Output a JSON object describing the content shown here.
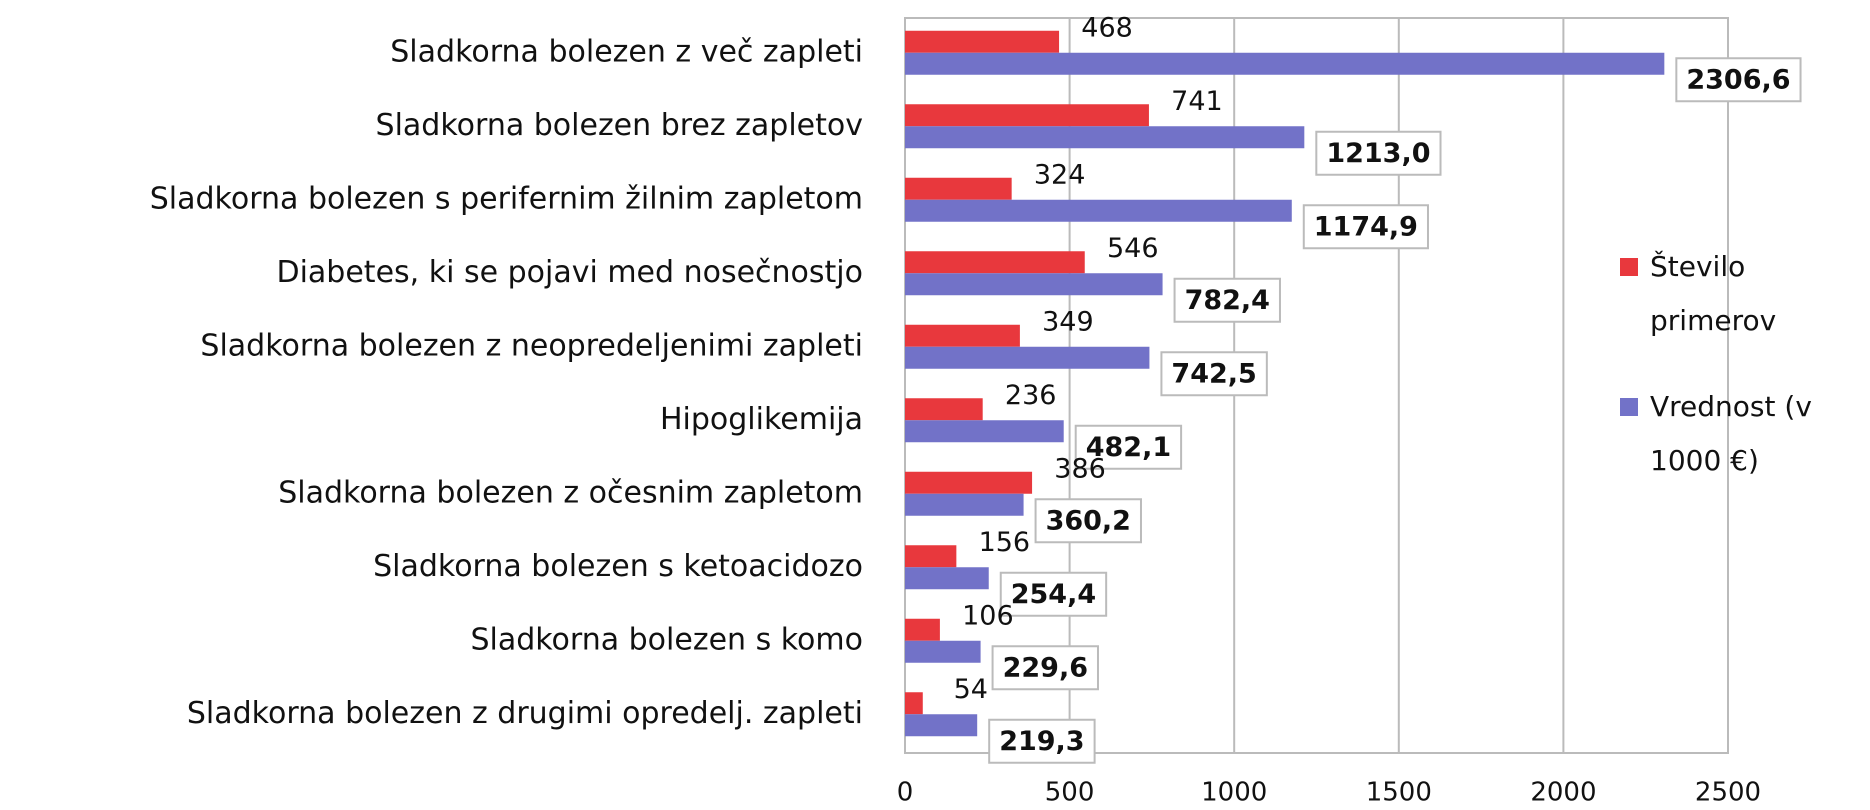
{
  "chart_data": {
    "type": "barh",
    "categories": [
      "Sladkorna bolezen z več zapleti",
      "Sladkorna bolezen brez zapletov",
      "Sladkorna bolezen s perifernim žilnim zapletom",
      "Diabetes, ki se pojavi med nosečnostjo",
      "Sladkorna bolezen z neopredeljenimi zapleti",
      "Hipoglikemija",
      "Sladkorna bolezen z očesnim zapletom",
      "Sladkorna bolezen s ketoacidozo",
      "Sladkorna bolezen s komo",
      "Sladkorna bolezen z drugimi opredelj. zapleti"
    ],
    "series": [
      {
        "name": "Število primerov",
        "color": "#e8383d",
        "values": [
          468,
          741,
          324,
          546,
          349,
          236,
          386,
          156,
          106,
          54
        ]
      },
      {
        "name": "Vrednost (v 1000 €)",
        "color": "#7272c8",
        "values": [
          2306.6,
          1213.0,
          1174.9,
          782.4,
          742.5,
          482.1,
          360.2,
          254.4,
          229.6,
          219.3
        ],
        "value_labels": [
          "2306,6",
          "1213,0",
          "1174,9",
          "782,4",
          "742,5",
          "482,1",
          "360,2",
          "254,4",
          "229,6",
          "219,3"
        ]
      }
    ],
    "xlim": [
      0,
      2500
    ],
    "xticks": [
      0,
      500,
      1000,
      1500,
      2000,
      2500
    ],
    "grid": true,
    "legend": "right"
  }
}
